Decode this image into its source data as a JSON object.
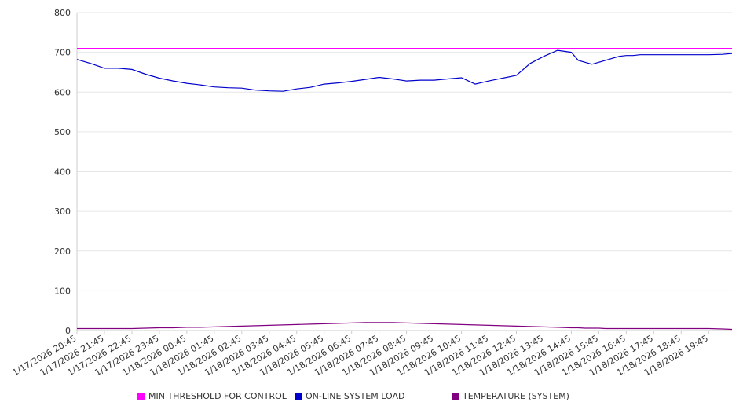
{
  "chart_data": {
    "type": "line",
    "title": "",
    "xlabel": "",
    "ylabel": "",
    "ylim": [
      0,
      800
    ],
    "yticks": [
      "0",
      "100",
      "200",
      "300",
      "400",
      "500",
      "600",
      "700",
      "800"
    ],
    "grid": true,
    "legend_position": "bottom",
    "x_tick_labels": [
      "1/17/2026 20:45",
      "1/17/2026 21:45",
      "1/17/2026 22:45",
      "1/17/2026 23:45",
      "1/18/2026 00:45",
      "1/18/2026 01:45",
      "1/18/2026 02:45",
      "1/18/2026 03:45",
      "1/18/2026 04:45",
      "1/18/2026 05:45",
      "1/18/2026 06:45",
      "1/18/2026 07:45",
      "1/18/2026 08:45",
      "1/18/2026 09:45",
      "1/18/2026 10:45",
      "1/18/2026 11:45",
      "1/18/2026 12:45",
      "1/18/2026 13:45",
      "1/18/2026 14:45",
      "1/18/2026 15:45",
      "1/18/2026 16:45",
      "1/18/2026 17:45",
      "1/18/2026 18:45",
      "1/18/2026 19:45"
    ],
    "x_hours": [
      0,
      0.5,
      1,
      1.5,
      2,
      2.5,
      3,
      3.5,
      4,
      4.5,
      5,
      5.5,
      6,
      6.5,
      7,
      7.5,
      8,
      8.5,
      9,
      9.5,
      10,
      10.5,
      11,
      11.5,
      12,
      12.5,
      13,
      13.5,
      14,
      14.5,
      15,
      15.5,
      16,
      16.5,
      17,
      17.5,
      18,
      18.25,
      18.5,
      18.75,
      19,
      19.25,
      19.5,
      19.75,
      20,
      20.25,
      20.5,
      20.75,
      21,
      21.25,
      21.5,
      21.75,
      22,
      22.5,
      23,
      23.5,
      23.85
    ],
    "series": [
      {
        "name": "MIN THRESHOLD FOR CONTROL",
        "color": "#ff00ff",
        "constant": 710
      },
      {
        "name": "ON-LINE SYSTEM LOAD",
        "color": "#0000cc",
        "values": [
          682,
          672,
          660,
          660,
          657,
          645,
          635,
          628,
          622,
          618,
          613,
          611,
          610,
          605,
          603,
          602,
          608,
          612,
          620,
          623,
          627,
          632,
          637,
          633,
          628,
          630,
          630,
          633,
          636,
          620,
          628,
          635,
          642,
          672,
          690,
          705,
          700,
          680,
          675,
          670,
          675,
          680,
          685,
          690,
          692,
          692,
          694,
          694,
          694,
          694,
          694,
          694,
          694,
          694,
          694,
          695,
          697
        ]
      },
      {
        "name": "TEMPERATURE (SYSTEM)",
        "color": "#800080",
        "values": [
          5,
          5,
          5,
          5,
          5,
          6,
          7,
          7,
          8,
          8,
          9,
          10,
          11,
          12,
          13,
          14,
          15,
          16,
          17,
          18,
          19,
          20,
          20,
          20,
          19,
          18,
          17,
          16,
          15,
          14,
          13,
          12,
          11,
          10,
          9,
          8,
          7,
          7,
          6,
          6,
          6,
          5,
          5,
          5,
          5,
          5,
          5,
          5,
          5,
          5,
          5,
          5,
          5,
          5,
          5,
          4,
          3
        ]
      }
    ]
  }
}
